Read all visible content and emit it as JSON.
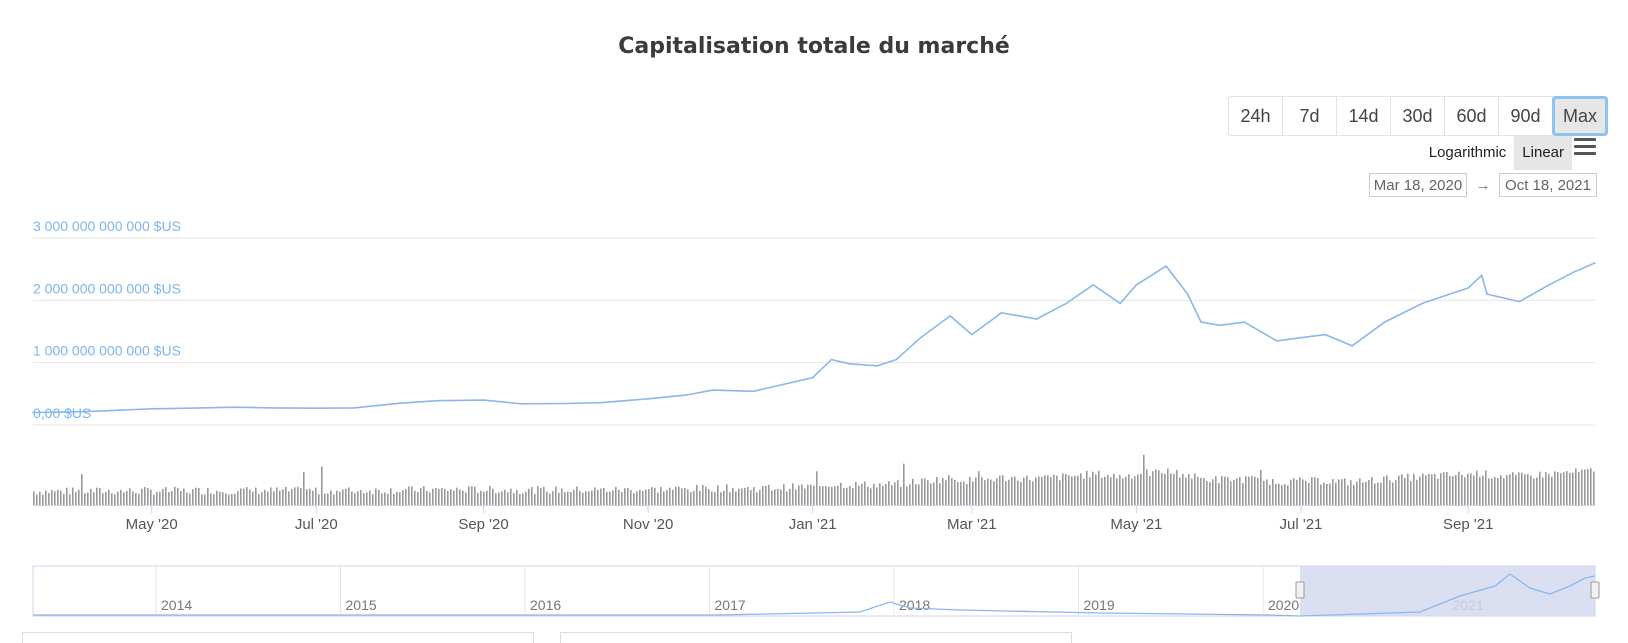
{
  "title": "Capitalisation totale du marché",
  "range_buttons": [
    "24h",
    "7d",
    "14d",
    "30d",
    "60d",
    "90d",
    "Max"
  ],
  "active_range": "Max",
  "scale_buttons": [
    "Logarithmic",
    "Linear"
  ],
  "active_scale": "Linear",
  "date_from": "Mar 18, 2020",
  "date_to": "Oct 18, 2021",
  "date_arrow": "→",
  "colors": {
    "line": "#8ab8ea",
    "axis_label": "#7cb5ec",
    "volume": "#999999",
    "navigator_fill": "#d3dbf0"
  },
  "icons": {
    "menu": "hamburger-menu-icon"
  },
  "chart_data": {
    "type": "line",
    "x_axis_ticks": [
      "May '20",
      "Jul '20",
      "Sep '20",
      "Nov '20",
      "Jan '21",
      "Mar '21",
      "May '21",
      "Jul '21",
      "Sep '21"
    ],
    "y_axis_ticks": [
      "0,00 $US",
      "1 000 000 000 000 $US",
      "2 000 000 000 000 $US",
      "3 000 000 000 000 $US"
    ],
    "ylim": [
      0,
      3000000000000
    ],
    "xlim": [
      "2020-03-18",
      "2021-10-18"
    ],
    "grid": true,
    "series": [
      {
        "values": [
          [
            "2020-03-18",
            200000000000
          ],
          [
            "2020-04-01",
            210000000000
          ],
          [
            "2020-04-15",
            230000000000
          ],
          [
            "2020-05-01",
            260000000000
          ],
          [
            "2020-05-15",
            270000000000
          ],
          [
            "2020-06-01",
            285000000000
          ],
          [
            "2020-06-15",
            275000000000
          ],
          [
            "2020-07-01",
            270000000000
          ],
          [
            "2020-07-15",
            275000000000
          ],
          [
            "2020-08-01",
            350000000000
          ],
          [
            "2020-08-15",
            390000000000
          ],
          [
            "2020-09-01",
            400000000000
          ],
          [
            "2020-09-15",
            340000000000
          ],
          [
            "2020-10-01",
            345000000000
          ],
          [
            "2020-10-15",
            360000000000
          ],
          [
            "2020-11-01",
            420000000000
          ],
          [
            "2020-11-15",
            480000000000
          ],
          [
            "2020-11-25",
            560000000000
          ],
          [
            "2020-12-10",
            540000000000
          ],
          [
            "2020-12-20",
            640000000000
          ],
          [
            "2021-01-01",
            760000000000
          ],
          [
            "2021-01-08",
            1050000000000
          ],
          [
            "2021-01-15",
            980000000000
          ],
          [
            "2021-01-25",
            950000000000
          ],
          [
            "2021-02-01",
            1050000000000
          ],
          [
            "2021-02-10",
            1400000000000
          ],
          [
            "2021-02-21",
            1750000000000
          ],
          [
            "2021-03-01",
            1450000000000
          ],
          [
            "2021-03-12",
            1800000000000
          ],
          [
            "2021-03-25",
            1700000000000
          ],
          [
            "2021-04-05",
            1950000000000
          ],
          [
            "2021-04-15",
            2250000000000
          ],
          [
            "2021-04-25",
            1950000000000
          ],
          [
            "2021-05-01",
            2250000000000
          ],
          [
            "2021-05-12",
            2550000000000
          ],
          [
            "2021-05-20",
            2100000000000
          ],
          [
            "2021-05-25",
            1650000000000
          ],
          [
            "2021-06-01",
            1600000000000
          ],
          [
            "2021-06-10",
            1650000000000
          ],
          [
            "2021-06-22",
            1350000000000
          ],
          [
            "2021-07-01",
            1400000000000
          ],
          [
            "2021-07-10",
            1450000000000
          ],
          [
            "2021-07-20",
            1270000000000
          ],
          [
            "2021-08-01",
            1650000000000
          ],
          [
            "2021-08-15",
            1950000000000
          ],
          [
            "2021-09-01",
            2200000000000
          ],
          [
            "2021-09-06",
            2400000000000
          ],
          [
            "2021-09-08",
            2100000000000
          ],
          [
            "2021-09-20",
            1980000000000
          ],
          [
            "2021-10-01",
            2250000000000
          ],
          [
            "2021-10-10",
            2450000000000
          ],
          [
            "2021-10-18",
            2600000000000
          ]
        ]
      }
    ],
    "navigator": {
      "years": [
        "2014",
        "2015",
        "2016",
        "2017",
        "2018",
        "2019",
        "2020",
        "2021"
      ],
      "selected_range": [
        "2020-03-18",
        "2021-10-18"
      ]
    }
  }
}
